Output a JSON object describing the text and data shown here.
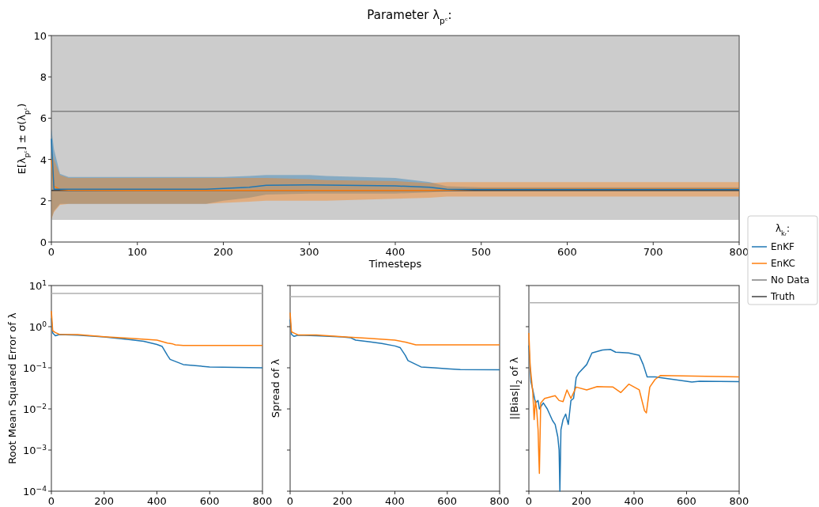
{
  "chart_data": [
    {
      "type": "line",
      "title": "Parameter λ$_{pᶜ}$:",
      "xlabel": "Timesteps",
      "ylabel": "E[λ$_{pᶜ}$] ± σ(λ$_{pᶜ}$)",
      "legend_title": "λ$_{kᵣ}$:",
      "legend": "right",
      "xlim": [
        0,
        800
      ],
      "xticks": [
        0,
        100,
        200,
        300,
        400,
        500,
        600,
        700,
        800
      ],
      "ylim": [
        0,
        10
      ],
      "yticks": [
        0,
        2,
        4,
        6,
        8,
        10
      ],
      "series": [
        {
          "name": "EnKF",
          "color": "#1f77b4",
          "x": [
            0,
            3,
            10,
            20,
            100,
            180,
            200,
            230,
            250,
            300,
            320,
            400,
            440,
            460,
            500,
            800
          ],
          "values": [
            5,
            2.56,
            2.56,
            2.56,
            2.56,
            2.56,
            2.6,
            2.65,
            2.75,
            2.77,
            2.76,
            2.72,
            2.65,
            2.56,
            2.55,
            2.55
          ],
          "lower": [
            1.1,
            1.5,
            1.85,
            1.85,
            1.85,
            1.85,
            2.0,
            2.15,
            2.3,
            2.35,
            2.35,
            2.35,
            2.4,
            2.45,
            2.45,
            2.45
          ],
          "upper": [
            5.5,
            4.5,
            3.3,
            3.15,
            3.15,
            3.15,
            3.15,
            3.2,
            3.25,
            3.25,
            3.2,
            3.1,
            2.9,
            2.7,
            2.65,
            2.65
          ]
        },
        {
          "name": "EnKC",
          "color": "#ff7f0e",
          "x": [
            0,
            3,
            10,
            20,
            100,
            180,
            200,
            230,
            250,
            300,
            320,
            400,
            440,
            460,
            500,
            800
          ],
          "values": [
            4,
            2.7,
            2.55,
            2.52,
            2.5,
            2.5,
            2.5,
            2.5,
            2.5,
            2.5,
            2.5,
            2.5,
            2.5,
            2.52,
            2.57,
            2.58
          ],
          "lower": [
            1.1,
            1.45,
            1.8,
            1.85,
            1.85,
            1.85,
            1.9,
            1.95,
            2.0,
            2.0,
            2.0,
            2.1,
            2.15,
            2.2,
            2.2,
            2.2
          ],
          "upper": [
            4.5,
            4.0,
            3.25,
            3.1,
            3.1,
            3.1,
            3.1,
            3.1,
            3.1,
            3.05,
            3.0,
            2.95,
            2.85,
            2.9,
            2.9,
            2.9
          ]
        },
        {
          "name": "No Data",
          "color": "#808080",
          "x": [
            0,
            800
          ],
          "values": [
            6.33,
            6.33
          ],
          "lower": [
            1.07,
            1.07
          ],
          "upper": [
            10,
            10
          ]
        },
        {
          "name": "Truth",
          "color": "#404040",
          "x": [
            0,
            800
          ],
          "values": [
            2.5,
            2.5
          ]
        }
      ]
    },
    {
      "type": "line",
      "ylabel": "Root Mean Squared Error of λ",
      "log": "y",
      "xlim": [
        0,
        800
      ],
      "xticks": [
        0,
        200,
        400,
        600,
        800
      ],
      "ylim": [
        0.0001,
        10
      ],
      "yticks": [
        {
          "value": 0.0001,
          "label": "10$^{−4}$"
        },
        {
          "value": 0.001,
          "label": "10$^{−3}$"
        },
        {
          "value": 0.01,
          "label": "10$^{−2}$"
        },
        {
          "value": 0.1,
          "label": "10$^{−1}$"
        },
        {
          "value": 1,
          "label": "10$^{0}$"
        },
        {
          "value": 10,
          "label": "10$^{1}$"
        }
      ],
      "series": [
        {
          "color": "#1f77b4",
          "x": [
            0,
            5,
            15,
            30,
            100,
            200,
            300,
            350,
            400,
            420,
            440,
            450,
            500,
            600,
            800
          ],
          "values": [
            1.6,
            0.7,
            0.6,
            0.64,
            0.62,
            0.56,
            0.48,
            0.44,
            0.37,
            0.33,
            0.2,
            0.16,
            0.12,
            0.105,
            0.1
          ]
        },
        {
          "color": "#ff7f0e",
          "x": [
            0,
            5,
            15,
            30,
            100,
            200,
            300,
            400,
            440,
            460,
            470,
            500,
            800
          ],
          "values": [
            2.4,
            0.8,
            0.72,
            0.65,
            0.64,
            0.57,
            0.52,
            0.47,
            0.4,
            0.38,
            0.36,
            0.35,
            0.35
          ]
        },
        {
          "color": "#b0b0b0",
          "x": [
            0,
            800
          ],
          "values": [
            6.4,
            6.4
          ]
        }
      ]
    },
    {
      "type": "line",
      "ylabel": "Spread of λ",
      "log": "y",
      "tick_labels": "x",
      "xlim": [
        0,
        800
      ],
      "xticks": [
        0,
        200,
        400,
        600,
        800
      ],
      "ylim": [
        0.0001,
        10
      ],
      "yticks": [
        {
          "value": 0.0001,
          "label": null
        },
        {
          "value": 0.001,
          "label": null
        },
        {
          "value": 0.01,
          "label": null
        },
        {
          "value": 0.1,
          "label": null
        },
        {
          "value": 1,
          "label": null
        },
        {
          "value": 10,
          "label": null
        }
      ],
      "series": [
        {
          "color": "#1f77b4",
          "x": [
            0,
            5,
            15,
            30,
            100,
            200,
            230,
            250,
            300,
            350,
            400,
            420,
            440,
            450,
            500,
            550,
            600,
            650,
            800
          ],
          "values": [
            1.5,
            0.65,
            0.58,
            0.62,
            0.6,
            0.56,
            0.54,
            0.47,
            0.43,
            0.39,
            0.34,
            0.31,
            0.2,
            0.15,
            0.105,
            0.1,
            0.095,
            0.091,
            0.09
          ]
        },
        {
          "color": "#ff7f0e",
          "x": [
            0,
            5,
            15,
            30,
            100,
            200,
            300,
            400,
            440,
            460,
            480,
            800
          ],
          "values": [
            2.2,
            0.75,
            0.7,
            0.63,
            0.63,
            0.57,
            0.52,
            0.47,
            0.42,
            0.39,
            0.36,
            0.36
          ]
        },
        {
          "color": "#b0b0b0",
          "x": [
            0,
            800
          ],
          "values": [
            5.4,
            5.4
          ]
        }
      ]
    },
    {
      "type": "line",
      "ylabel": "||Bias||$_{2}$ of λ",
      "log": "y",
      "tick_labels": "x",
      "xlim": [
        0,
        800
      ],
      "xticks": [
        0,
        200,
        400,
        600,
        800
      ],
      "ylim": [
        0.0001,
        10
      ],
      "yticks": [
        {
          "value": 0.0001,
          "label": null
        },
        {
          "value": 0.001,
          "label": null
        },
        {
          "value": 0.01,
          "label": null
        },
        {
          "value": 0.1,
          "label": null
        },
        {
          "value": 1,
          "label": null
        },
        {
          "value": 10,
          "label": null
        }
      ],
      "series": [
        {
          "color": "#1f77b4",
          "x": [
            0,
            8,
            15,
            25,
            35,
            40,
            55,
            70,
            90,
            100,
            110,
            115,
            118,
            122,
            130,
            140,
            150,
            160,
            170,
            180,
            190,
            220,
            240,
            280,
            310,
            330,
            380,
            420,
            435,
            450,
            480,
            550,
            620,
            650,
            800
          ],
          "values": [
            0.35,
            0.045,
            0.029,
            0.014,
            0.016,
            0.01,
            0.014,
            0.01,
            0.0052,
            0.0042,
            0.0021,
            0.001,
            0.0001,
            0.0031,
            0.0055,
            0.0075,
            0.0042,
            0.016,
            0.018,
            0.058,
            0.075,
            0.12,
            0.23,
            0.27,
            0.28,
            0.24,
            0.23,
            0.2,
            0.12,
            0.06,
            0.06,
            0.052,
            0.045,
            0.047,
            0.046
          ]
        },
        {
          "color": "#ff7f0e",
          "x": [
            0,
            5,
            15,
            20,
            25,
            30,
            35,
            38,
            40,
            45,
            60,
            100,
            115,
            130,
            145,
            160,
            180,
            220,
            260,
            320,
            350,
            380,
            420,
            440,
            447,
            460,
            480,
            500,
            800
          ],
          "values": [
            0.7,
            0.11,
            0.025,
            0.0055,
            0.016,
            0.009,
            0.0031,
            0.00065,
            0.00027,
            0.014,
            0.018,
            0.021,
            0.016,
            0.015,
            0.029,
            0.018,
            0.034,
            0.029,
            0.035,
            0.034,
            0.025,
            0.04,
            0.029,
            0.009,
            0.008,
            0.034,
            0.052,
            0.065,
            0.06
          ]
        },
        {
          "color": "#b0b0b0",
          "x": [
            0,
            800
          ],
          "values": [
            3.8,
            3.8
          ]
        }
      ]
    }
  ]
}
